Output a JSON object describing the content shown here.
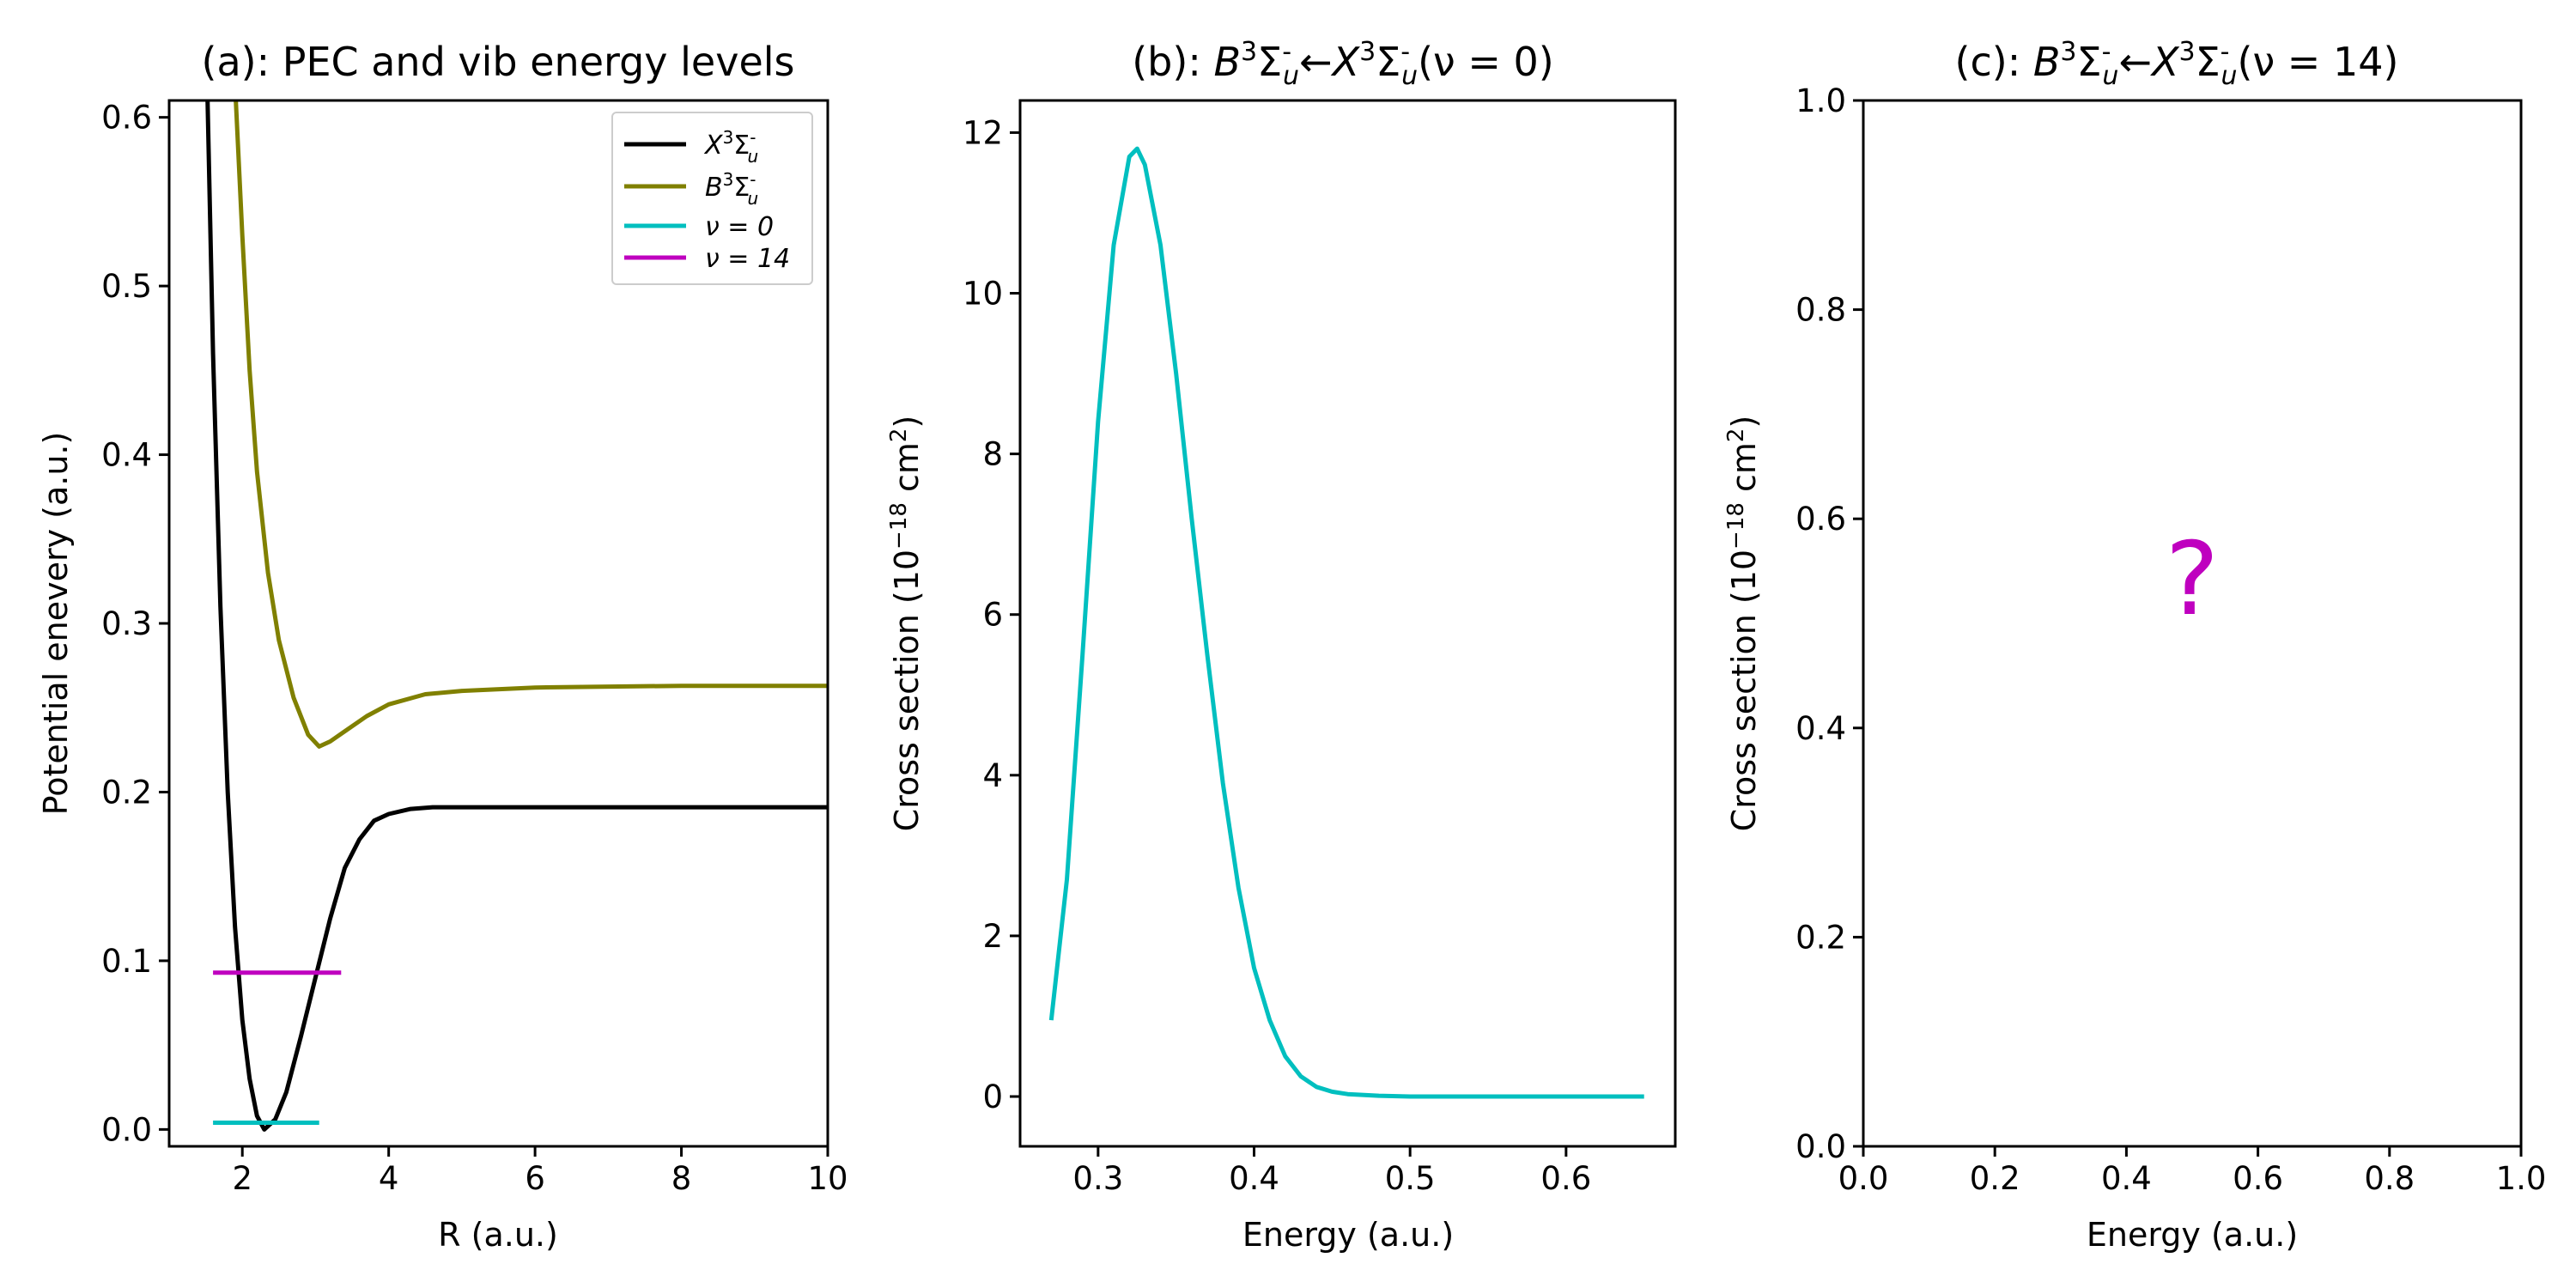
{
  "chart_data": [
    {
      "panel": "a",
      "type": "line",
      "title": "(a): PEC and vib energy levels",
      "xlabel": "R (a.u.)",
      "ylabel": "Potential enevery (a.u.)",
      "xlim": [
        1,
        10
      ],
      "ylim": [
        -0.01,
        0.61
      ],
      "xticks": [
        2,
        4,
        6,
        8,
        10
      ],
      "yticks": [
        0.0,
        0.1,
        0.2,
        0.3,
        0.4,
        0.5,
        0.6
      ],
      "xtick_labels": [
        "2",
        "4",
        "6",
        "8",
        "10"
      ],
      "ytick_labels": [
        "0.0",
        "0.1",
        "0.2",
        "0.3",
        "0.4",
        "0.5",
        "0.6"
      ],
      "legend_position": "top-right",
      "series": [
        {
          "name": "X³Σu⁻",
          "color": "#000000",
          "x": [
            1.5,
            1.6,
            1.7,
            1.8,
            1.9,
            2.0,
            2.1,
            2.2,
            2.3,
            2.45,
            2.6,
            2.8,
            3.0,
            3.2,
            3.4,
            3.6,
            3.8,
            4.0,
            4.3,
            4.6,
            5.0,
            6.0,
            8.0,
            10.0
          ],
          "y": [
            0.66,
            0.46,
            0.31,
            0.2,
            0.12,
            0.065,
            0.03,
            0.008,
            0.0,
            0.006,
            0.022,
            0.055,
            0.09,
            0.125,
            0.155,
            0.172,
            0.183,
            0.187,
            0.19,
            0.191,
            0.191,
            0.191,
            0.191,
            0.191
          ]
        },
        {
          "name": "B³Σu⁻",
          "color": "#808000",
          "x": [
            1.9,
            2.0,
            2.1,
            2.2,
            2.35,
            2.5,
            2.7,
            2.9,
            3.05,
            3.2,
            3.4,
            3.7,
            4.0,
            4.5,
            5.0,
            6.0,
            8.0,
            10.0
          ],
          "y": [
            0.62,
            0.53,
            0.45,
            0.39,
            0.33,
            0.29,
            0.256,
            0.234,
            0.227,
            0.23,
            0.236,
            0.245,
            0.252,
            0.258,
            0.26,
            0.262,
            0.263,
            0.263
          ]
        },
        {
          "name": "ν = 0",
          "color": "#00bfbf",
          "x": [
            1.6,
            3.05
          ],
          "y": [
            0.004,
            0.004
          ]
        },
        {
          "name": "ν = 14",
          "color": "#bf00bf",
          "x": [
            1.6,
            3.35
          ],
          "y": [
            0.093,
            0.093
          ]
        }
      ]
    },
    {
      "panel": "b",
      "type": "line",
      "title": "(b): B³Σu⁻ ← X³Σu⁻(ν = 0)",
      "title_parts": {
        "prefix": "(b): ",
        "state_b": "B",
        "state_x": "X",
        "sup": "3",
        "sigma": "Σ",
        "minus": "-",
        "sub": "u",
        "arrow": "←",
        "suffix": "(ν = 0)"
      },
      "xlabel": "Energy (a.u.)",
      "ylabel": "Cross section (10⁻¹⁸ cm²)",
      "xlim": [
        0.25,
        0.67
      ],
      "ylim": [
        -0.62,
        12.4
      ],
      "xticks": [
        0.3,
        0.4,
        0.5,
        0.6
      ],
      "yticks": [
        0,
        2,
        4,
        6,
        8,
        10,
        12
      ],
      "xtick_labels": [
        "0.3",
        "0.4",
        "0.5",
        "0.6"
      ],
      "ytick_labels": [
        "0",
        "2",
        "4",
        "6",
        "8",
        "10",
        "12"
      ],
      "series": [
        {
          "color": "#00bfbf",
          "x": [
            0.27,
            0.28,
            0.29,
            0.3,
            0.31,
            0.32,
            0.325,
            0.33,
            0.34,
            0.35,
            0.36,
            0.37,
            0.38,
            0.39,
            0.4,
            0.41,
            0.42,
            0.43,
            0.44,
            0.45,
            0.46,
            0.48,
            0.5,
            0.55,
            0.6,
            0.65
          ],
          "y": [
            0.95,
            2.7,
            5.5,
            8.4,
            10.6,
            11.7,
            11.8,
            11.6,
            10.6,
            9.0,
            7.2,
            5.5,
            3.9,
            2.6,
            1.6,
            0.95,
            0.5,
            0.25,
            0.12,
            0.06,
            0.03,
            0.01,
            0.0,
            0.0,
            0.0,
            0.0
          ]
        }
      ]
    },
    {
      "panel": "c",
      "type": "line",
      "title": "(c): B³Σu⁻ ← X³Σu⁻(ν = 14)",
      "title_parts": {
        "prefix": "(c): ",
        "state_b": "B",
        "state_x": "X",
        "sup": "3",
        "sigma": "Σ",
        "minus": "-",
        "sub": "u",
        "arrow": "←",
        "suffix": "(ν = 14)"
      },
      "xlabel": "Energy (a.u.)",
      "ylabel": "Cross section (10⁻¹⁸ cm²)",
      "xlim": [
        0,
        1
      ],
      "ylim": [
        0,
        1
      ],
      "xticks": [
        0.0,
        0.2,
        0.4,
        0.6,
        0.8,
        1.0
      ],
      "yticks": [
        0.0,
        0.2,
        0.4,
        0.6,
        0.8,
        1.0
      ],
      "xtick_labels": [
        "0.0",
        "0.2",
        "0.4",
        "0.6",
        "0.8",
        "1.0"
      ],
      "ytick_labels": [
        "0.0",
        "0.2",
        "0.4",
        "0.6",
        "0.8",
        "1.0"
      ],
      "annotation": {
        "text": "?",
        "x": 0.5,
        "y": 0.55,
        "color": "#bf00bf"
      },
      "series": []
    }
  ],
  "ylabel_parts": {
    "prefix": "Cross section (10",
    "exp": "−18",
    "mid": " cm",
    "sq": "2",
    "suffix": ")"
  }
}
